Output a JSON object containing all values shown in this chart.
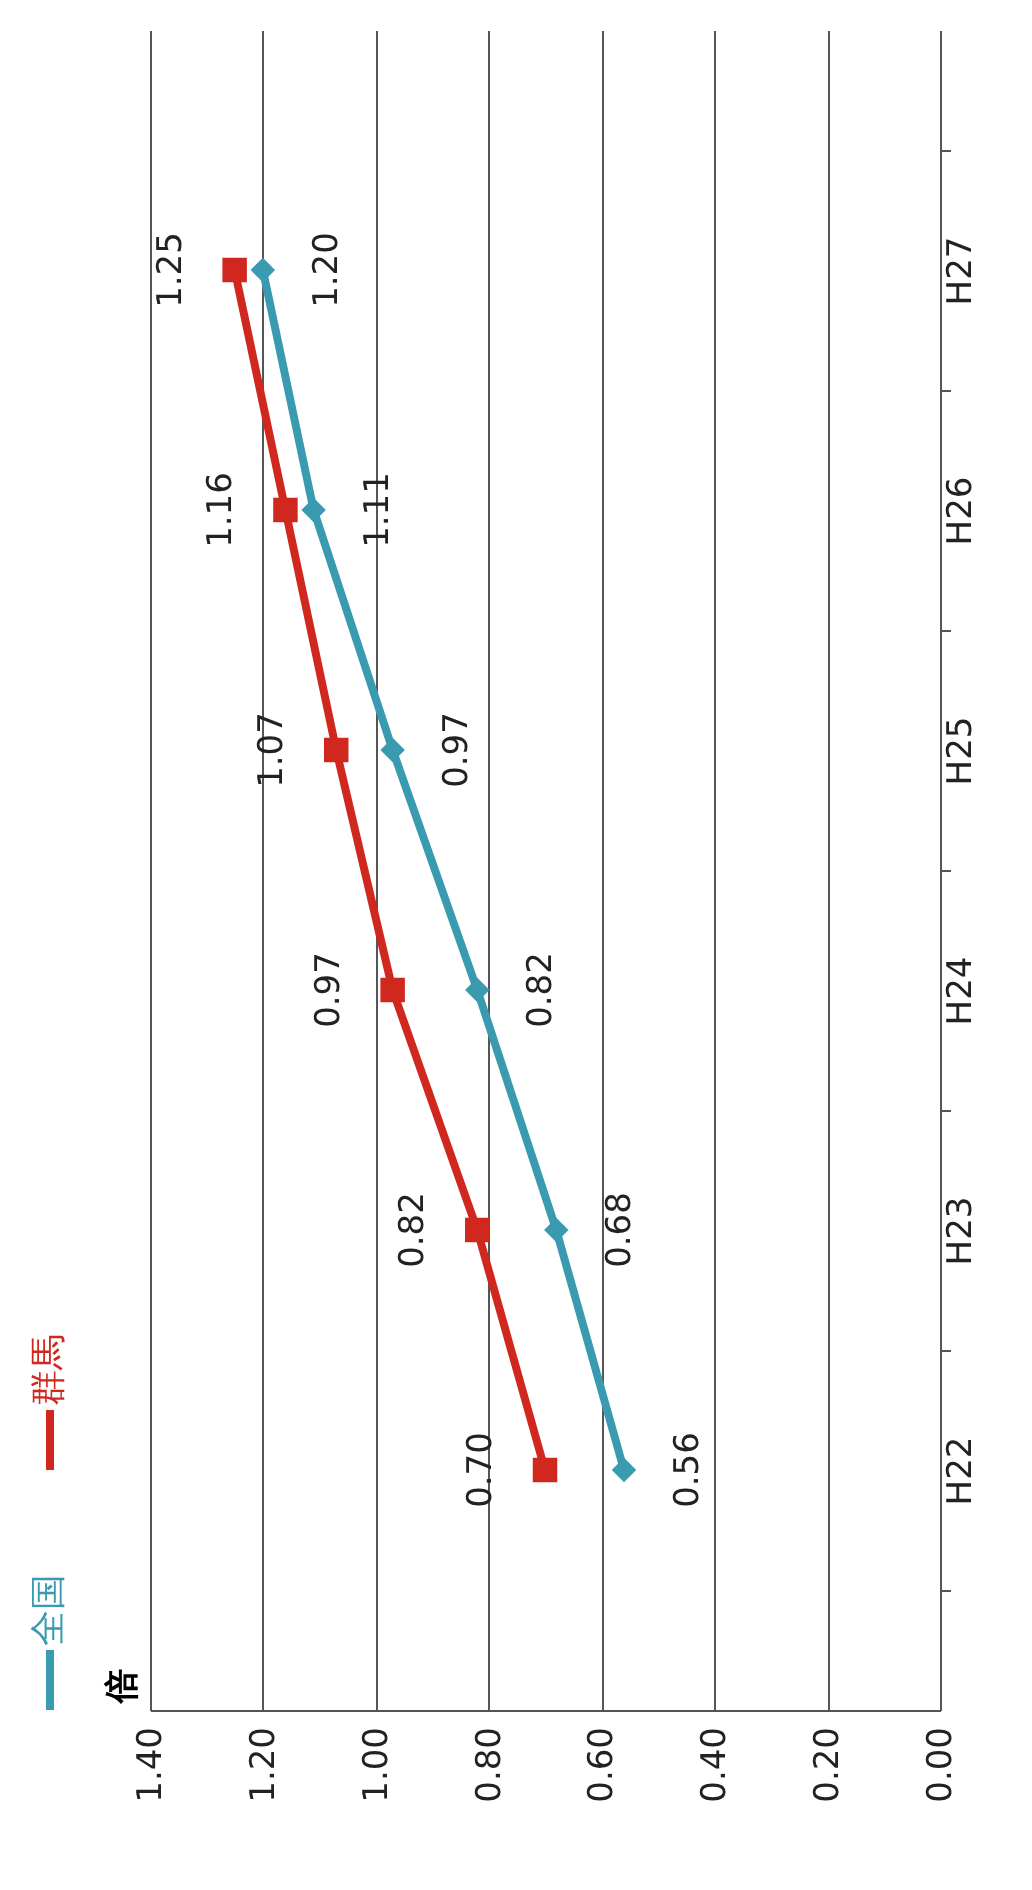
{
  "chart_data": {
    "type": "line",
    "orientation": "horizontal",
    "ylabel": "倍",
    "categories": [
      "H27",
      "H26",
      "H25",
      "H24",
      "H23",
      "H22"
    ],
    "series": [
      {
        "name": "全国",
        "color": "#3a9bb0",
        "marker": "diamond",
        "values": [
          1.2,
          1.11,
          0.97,
          0.82,
          0.68,
          0.56
        ],
        "value_labels": [
          "1.20",
          "1.11",
          "0.97",
          "0.82",
          "0.68",
          "0.56"
        ]
      },
      {
        "name": "群馬",
        "color": "#d0281e",
        "marker": "square",
        "values": [
          1.25,
          1.16,
          1.07,
          0.97,
          0.82,
          0.7
        ],
        "value_labels": [
          "1.25",
          "1.16",
          "1.07",
          "0.97",
          "0.82",
          "0.70"
        ]
      }
    ],
    "xlim": [
      1.4,
      0.0
    ],
    "xticks": [
      {
        "value": 1.4,
        "label": "1.40"
      },
      {
        "value": 1.2,
        "label": "1.20"
      },
      {
        "value": 1.0,
        "label": "1.00"
      },
      {
        "value": 0.8,
        "label": "0.80"
      },
      {
        "value": 0.6,
        "label": "0.60"
      },
      {
        "value": 0.4,
        "label": "0.40"
      },
      {
        "value": 0.2,
        "label": "0.20"
      },
      {
        "value": 0,
        "label": "0.00"
      }
    ],
    "grid": "x",
    "legend": "left",
    "line_style": "solid"
  }
}
